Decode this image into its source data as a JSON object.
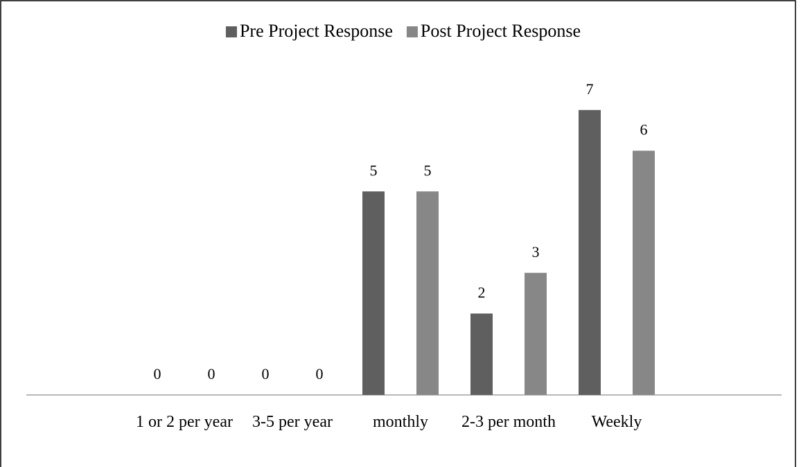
{
  "chart_data": {
    "type": "bar",
    "categories": [
      "1 or 2 per year",
      "3-5 per year",
      "monthly",
      "2-3 per month",
      "Weekly"
    ],
    "series": [
      {
        "name": "Pre Project Response",
        "color": "#5f5f5f",
        "values": [
          0,
          0,
          5,
          2,
          7
        ]
      },
      {
        "name": "Post Project Response",
        "color": "#878787",
        "values": [
          0,
          0,
          5,
          3,
          6
        ]
      }
    ],
    "ylim": [
      0,
      8
    ],
    "legend": "top"
  }
}
